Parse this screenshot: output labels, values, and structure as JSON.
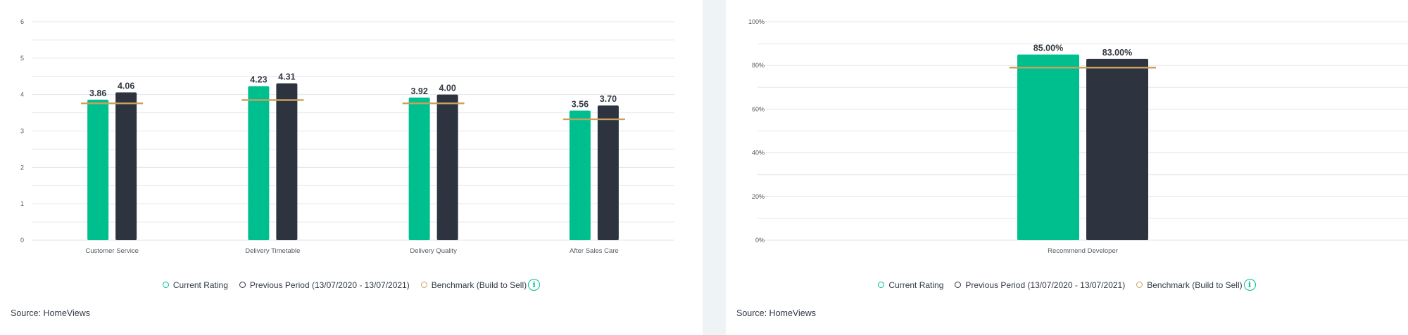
{
  "colors": {
    "current": "#00bf8f",
    "previous": "#2d3440",
    "benchmark": "#c9a15d",
    "grid": "#e3e6ea",
    "axis_text": "#555b63",
    "label_text": "#333a44"
  },
  "legend": {
    "current": "Current Rating",
    "previous": "Previous Period (13/07/2020 - 13/07/2021)",
    "benchmark": "Benchmark (Build to Sell)",
    "info_icon": "info-icon"
  },
  "source": "Source: HomeViews",
  "chart_data": [
    {
      "type": "bar",
      "title": "",
      "xlabel": "",
      "ylabel": "",
      "ylim": [
        0,
        6
      ],
      "yticks": [
        "0",
        "1",
        "2",
        "3",
        "4",
        "5",
        "6"
      ],
      "grid": true,
      "legend_position": "bottom",
      "categories": [
        "Customer Service",
        "Delivery Timetable",
        "Delivery Quality",
        "After Sales Care"
      ],
      "series": [
        {
          "name": "Current Rating",
          "values": [
            3.86,
            4.23,
            3.92,
            3.56
          ],
          "labels": [
            "3.86",
            "4.23",
            "3.92",
            "3.56"
          ]
        },
        {
          "name": "Previous Period (13/07/2020 - 13/07/2021)",
          "values": [
            4.06,
            4.31,
            4.0,
            3.7
          ],
          "labels": [
            "4.06",
            "4.31",
            "4.00",
            "3.70"
          ]
        }
      ],
      "benchmark": {
        "name": "Benchmark (Build to Sell)",
        "values": [
          3.76,
          3.85,
          3.76,
          3.32
        ]
      }
    },
    {
      "type": "bar",
      "title": "",
      "xlabel": "",
      "ylabel": "",
      "ylim": [
        0,
        100
      ],
      "yticks": [
        "0%",
        "20%",
        "40%",
        "60%",
        "80%",
        "100%"
      ],
      "grid": true,
      "legend_position": "bottom",
      "categories": [
        "Recommend Developer"
      ],
      "series": [
        {
          "name": "Current Rating",
          "values": [
            85.0
          ],
          "labels": [
            "85.00%"
          ]
        },
        {
          "name": "Previous Period (13/07/2020 - 13/07/2021)",
          "values": [
            83.0
          ],
          "labels": [
            "83.00%"
          ]
        }
      ],
      "benchmark": {
        "name": "Benchmark (Build to Sell)",
        "values": [
          79
        ]
      }
    }
  ]
}
